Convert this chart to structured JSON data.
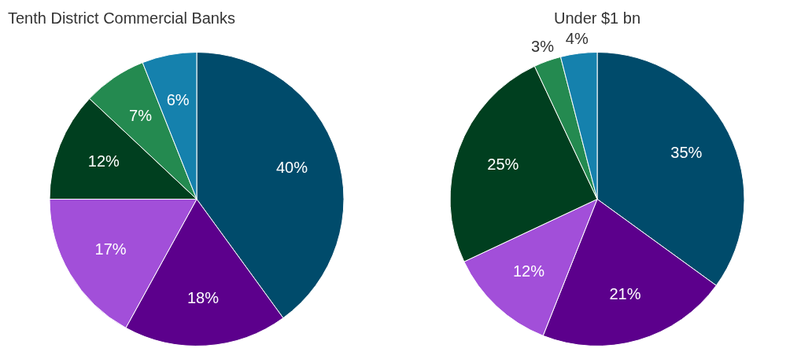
{
  "chart_data": [
    {
      "type": "pie",
      "title": "Tenth District Commercial Banks",
      "categories": [
        null,
        null,
        null,
        null,
        null,
        null
      ],
      "values": [
        40,
        18,
        17,
        12,
        7,
        6
      ],
      "colors": [
        "#004b6b",
        "#5c008c",
        "#a24fd9",
        "#003f1f",
        "#248a50",
        "#1581ad"
      ],
      "value_labels": [
        "40%",
        "18%",
        "17%",
        "12%",
        "7%",
        "6%"
      ]
    },
    {
      "type": "pie",
      "title": "Under $1 bn",
      "categories": [
        null,
        null,
        null,
        null,
        null,
        null
      ],
      "values": [
        35,
        21,
        12,
        25,
        3,
        4
      ],
      "colors": [
        "#004b6b",
        "#5c008c",
        "#a24fd9",
        "#003f1f",
        "#248a50",
        "#1581ad"
      ],
      "value_labels": [
        "35%",
        "21%",
        "12%",
        "25%",
        "3%",
        "4%"
      ]
    }
  ]
}
